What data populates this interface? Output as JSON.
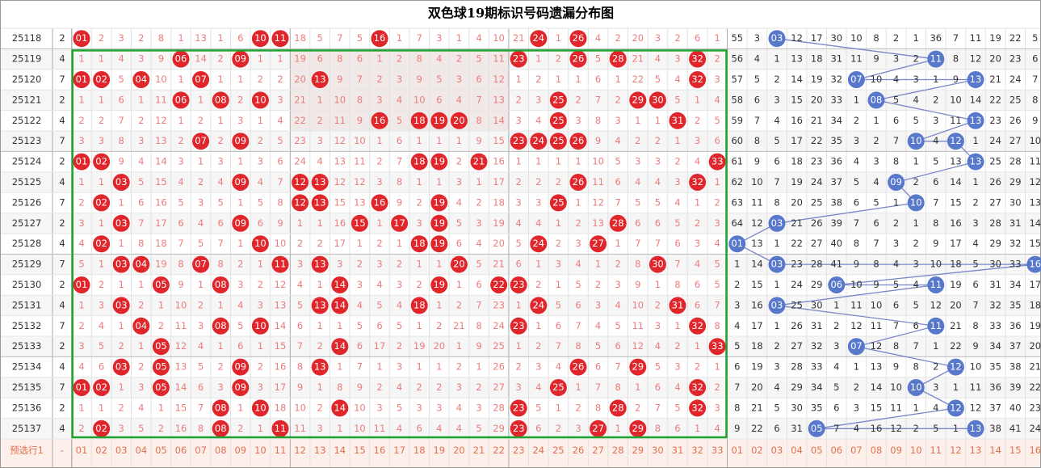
{
  "header": {
    "title": "双色球19期标识号码遗漏分布图"
  },
  "table": {
    "rows": [
      {
        "period": "25118",
        "mark": "2",
        "red": [
          "01",
          "2",
          "3",
          "2",
          "8",
          "1",
          "13",
          "1",
          "6",
          "10",
          "11",
          "18",
          "5",
          "7",
          "5",
          "16",
          "1",
          "7",
          "3",
          "1",
          "4",
          "10",
          "21",
          "24",
          "1",
          "26",
          "4",
          "2",
          "20",
          "3",
          "2",
          "6",
          "1"
        ],
        "blue": [
          "55",
          "3",
          "03",
          "12",
          "17",
          "30",
          "10",
          "8",
          "2",
          "1",
          "36",
          "7",
          "11",
          "19",
          "22",
          "5"
        ]
      },
      {
        "period": "25119",
        "mark": "4",
        "red": [
          "1",
          "1",
          "4",
          "3",
          "9",
          "06",
          "14",
          "2",
          "09",
          "1",
          "1",
          "19",
          "6",
          "8",
          "6",
          "1",
          "2",
          "8",
          "4",
          "2",
          "5",
          "11",
          "23",
          "1",
          "2",
          "26",
          "5",
          "28",
          "21",
          "4",
          "3",
          "32",
          "2"
        ],
        "blue": [
          "56",
          "4",
          "1",
          "13",
          "18",
          "31",
          "11",
          "9",
          "3",
          "2",
          "11",
          "8",
          "12",
          "20",
          "23",
          "6"
        ]
      },
      {
        "period": "25120",
        "mark": "7",
        "red": [
          "01",
          "02",
          "5",
          "04",
          "10",
          "1",
          "07",
          "1",
          "1",
          "2",
          "2",
          "20",
          "13",
          "9",
          "7",
          "2",
          "3",
          "9",
          "5",
          "3",
          "6",
          "12",
          "1",
          "2",
          "1",
          "1",
          "6",
          "1",
          "22",
          "5",
          "4",
          "32",
          "3"
        ],
        "blue": [
          "57",
          "5",
          "2",
          "14",
          "19",
          "32",
          "07",
          "10",
          "4",
          "3",
          "1",
          "9",
          "13",
          "21",
          "24",
          "7"
        ]
      },
      {
        "period": "25121",
        "mark": "2",
        "red": [
          "1",
          "1",
          "6",
          "1",
          "11",
          "06",
          "1",
          "08",
          "2",
          "10",
          "3",
          "21",
          "1",
          "10",
          "8",
          "3",
          "4",
          "10",
          "6",
          "4",
          "7",
          "13",
          "2",
          "3",
          "25",
          "2",
          "7",
          "2",
          "29",
          "30",
          "5",
          "1",
          "4"
        ],
        "blue": [
          "58",
          "6",
          "3",
          "15",
          "20",
          "33",
          "1",
          "08",
          "5",
          "4",
          "2",
          "10",
          "14",
          "22",
          "25",
          "8"
        ]
      },
      {
        "period": "25122",
        "mark": "4",
        "red": [
          "2",
          "2",
          "7",
          "2",
          "12",
          "1",
          "2",
          "1",
          "3",
          "1",
          "4",
          "22",
          "2",
          "11",
          "9",
          "16",
          "5",
          "18",
          "19",
          "20",
          "8",
          "14",
          "3",
          "4",
          "25",
          "3",
          "8",
          "3",
          "1",
          "1",
          "31",
          "2",
          "5"
        ],
        "blue": [
          "59",
          "7",
          "4",
          "16",
          "21",
          "34",
          "2",
          "1",
          "6",
          "5",
          "3",
          "11",
          "13",
          "23",
          "26",
          "9"
        ]
      },
      {
        "period": "25123",
        "mark": "7",
        "red": [
          "3",
          "3",
          "8",
          "3",
          "13",
          "2",
          "07",
          "2",
          "09",
          "2",
          "5",
          "23",
          "3",
          "12",
          "10",
          "1",
          "6",
          "1",
          "1",
          "1",
          "9",
          "15",
          "23",
          "24",
          "25",
          "26",
          "9",
          "4",
          "2",
          "2",
          "1",
          "3",
          "6"
        ],
        "blue": [
          "60",
          "8",
          "5",
          "17",
          "22",
          "35",
          "3",
          "2",
          "7",
          "10",
          "4",
          "12",
          "1",
          "24",
          "27",
          "10"
        ]
      },
      {
        "period": "25124",
        "mark": "2",
        "red": [
          "01",
          "02",
          "9",
          "4",
          "14",
          "3",
          "1",
          "3",
          "1",
          "3",
          "6",
          "24",
          "4",
          "13",
          "11",
          "2",
          "7",
          "18",
          "19",
          "2",
          "21",
          "16",
          "1",
          "1",
          "1",
          "1",
          "10",
          "5",
          "3",
          "3",
          "2",
          "4",
          "33"
        ],
        "blue": [
          "61",
          "9",
          "6",
          "18",
          "23",
          "36",
          "4",
          "3",
          "8",
          "1",
          "5",
          "13",
          "13",
          "25",
          "28",
          "11"
        ]
      },
      {
        "period": "25125",
        "mark": "4",
        "red": [
          "1",
          "1",
          "03",
          "5",
          "15",
          "4",
          "2",
          "4",
          "09",
          "4",
          "7",
          "12",
          "13",
          "12",
          "12",
          "3",
          "8",
          "1",
          "1",
          "3",
          "1",
          "17",
          "2",
          "2",
          "2",
          "26",
          "11",
          "6",
          "4",
          "4",
          "3",
          "32",
          "1"
        ],
        "blue": [
          "62",
          "10",
          "7",
          "19",
          "24",
          "37",
          "5",
          "4",
          "09",
          "2",
          "6",
          "14",
          "1",
          "26",
          "29",
          "12"
        ]
      },
      {
        "period": "25126",
        "mark": "7",
        "red": [
          "2",
          "02",
          "1",
          "6",
          "16",
          "5",
          "3",
          "5",
          "1",
          "5",
          "8",
          "12",
          "13",
          "15",
          "13",
          "16",
          "9",
          "2",
          "19",
          "4",
          "2",
          "18",
          "3",
          "3",
          "25",
          "1",
          "12",
          "7",
          "5",
          "5",
          "4",
          "1",
          "2"
        ],
        "blue": [
          "63",
          "11",
          "8",
          "20",
          "25",
          "38",
          "6",
          "5",
          "1",
          "10",
          "7",
          "15",
          "2",
          "27",
          "30",
          "13"
        ]
      },
      {
        "period": "25127",
        "mark": "2",
        "red": [
          "3",
          "1",
          "03",
          "7",
          "17",
          "6",
          "4",
          "6",
          "09",
          "6",
          "9",
          "1",
          "1",
          "16",
          "15",
          "1",
          "17",
          "3",
          "19",
          "5",
          "3",
          "19",
          "4",
          "4",
          "1",
          "2",
          "13",
          "28",
          "6",
          "6",
          "5",
          "2",
          "3"
        ],
        "blue": [
          "64",
          "12",
          "03",
          "21",
          "26",
          "39",
          "7",
          "6",
          "2",
          "1",
          "8",
          "16",
          "3",
          "28",
          "31",
          "14"
        ]
      },
      {
        "period": "25128",
        "mark": "4",
        "red": [
          "4",
          "02",
          "1",
          "8",
          "18",
          "7",
          "5",
          "7",
          "1",
          "10",
          "10",
          "2",
          "2",
          "17",
          "1",
          "2",
          "1",
          "18",
          "19",
          "6",
          "4",
          "20",
          "5",
          "24",
          "2",
          "3",
          "27",
          "1",
          "7",
          "7",
          "6",
          "3",
          "4"
        ],
        "blue": [
          "01",
          "13",
          "1",
          "22",
          "27",
          "40",
          "8",
          "7",
          "3",
          "2",
          "9",
          "17",
          "4",
          "29",
          "32",
          "15"
        ]
      },
      {
        "period": "25129",
        "mark": "7",
        "red": [
          "5",
          "1",
          "03",
          "04",
          "19",
          "8",
          "07",
          "8",
          "2",
          "1",
          "11",
          "3",
          "13",
          "3",
          "2",
          "3",
          "2",
          "1",
          "1",
          "20",
          "5",
          "21",
          "6",
          "1",
          "3",
          "4",
          "1",
          "2",
          "8",
          "30",
          "7",
          "4",
          "5"
        ],
        "blue": [
          "1",
          "14",
          "03",
          "23",
          "28",
          "41",
          "9",
          "8",
          "4",
          "3",
          "10",
          "18",
          "5",
          "30",
          "33",
          "16"
        ]
      },
      {
        "period": "25130",
        "mark": "2",
        "red": [
          "01",
          "2",
          "1",
          "1",
          "05",
          "9",
          "1",
          "08",
          "3",
          "2",
          "12",
          "4",
          "1",
          "14",
          "3",
          "4",
          "3",
          "2",
          "19",
          "1",
          "6",
          "22",
          "23",
          "2",
          "1",
          "5",
          "2",
          "3",
          "9",
          "1",
          "8",
          "6",
          "5"
        ],
        "blue": [
          "2",
          "15",
          "1",
          "24",
          "29",
          "06",
          "10",
          "9",
          "5",
          "4",
          "11",
          "19",
          "6",
          "31",
          "34",
          "17"
        ]
      },
      {
        "period": "25131",
        "mark": "4",
        "red": [
          "1",
          "3",
          "03",
          "2",
          "1",
          "10",
          "2",
          "1",
          "4",
          "3",
          "13",
          "5",
          "13",
          "14",
          "4",
          "5",
          "4",
          "18",
          "1",
          "2",
          "7",
          "23",
          "1",
          "24",
          "5",
          "6",
          "3",
          "4",
          "10",
          "2",
          "31",
          "6",
          "7"
        ],
        "blue": [
          "3",
          "16",
          "03",
          "25",
          "30",
          "1",
          "11",
          "10",
          "6",
          "5",
          "12",
          "20",
          "7",
          "32",
          "35",
          "18"
        ]
      },
      {
        "period": "25132",
        "mark": "7",
        "red": [
          "2",
          "4",
          "1",
          "04",
          "2",
          "11",
          "3",
          "08",
          "5",
          "10",
          "14",
          "6",
          "1",
          "1",
          "5",
          "6",
          "5",
          "1",
          "2",
          "21",
          "8",
          "24",
          "23",
          "1",
          "6",
          "7",
          "4",
          "5",
          "11",
          "3",
          "1",
          "32",
          "8"
        ],
        "blue": [
          "4",
          "17",
          "1",
          "26",
          "31",
          "2",
          "12",
          "11",
          "7",
          "6",
          "11",
          "21",
          "8",
          "33",
          "36",
          "19"
        ]
      },
      {
        "period": "25133",
        "mark": "2",
        "red": [
          "3",
          "5",
          "2",
          "1",
          "05",
          "12",
          "4",
          "1",
          "6",
          "1",
          "15",
          "7",
          "2",
          "14",
          "6",
          "17",
          "2",
          "19",
          "20",
          "1",
          "9",
          "25",
          "1",
          "2",
          "7",
          "8",
          "5",
          "6",
          "12",
          "4",
          "2",
          "1",
          "33"
        ],
        "blue": [
          "5",
          "18",
          "2",
          "27",
          "32",
          "3",
          "07",
          "12",
          "8",
          "7",
          "1",
          "22",
          "9",
          "34",
          "37",
          "20"
        ]
      },
      {
        "period": "25134",
        "mark": "4",
        "red": [
          "4",
          "6",
          "03",
          "2",
          "05",
          "13",
          "5",
          "2",
          "09",
          "2",
          "16",
          "8",
          "13",
          "1",
          "7",
          "1",
          "3",
          "1",
          "1",
          "2",
          "1",
          "26",
          "2",
          "3",
          "4",
          "26",
          "6",
          "7",
          "29",
          "5",
          "3",
          "2",
          "1"
        ],
        "blue": [
          "6",
          "19",
          "3",
          "28",
          "33",
          "4",
          "1",
          "13",
          "9",
          "8",
          "2",
          "12",
          "10",
          "35",
          "38",
          "21"
        ]
      },
      {
        "period": "25135",
        "mark": "7",
        "red": [
          "01",
          "02",
          "1",
          "3",
          "05",
          "14",
          "6",
          "3",
          "09",
          "3",
          "17",
          "9",
          "1",
          "8",
          "9",
          "2",
          "4",
          "2",
          "2",
          "3",
          "2",
          "27",
          "3",
          "4",
          "25",
          "1",
          "7",
          "8",
          "1",
          "6",
          "4",
          "32",
          "2"
        ],
        "blue": [
          "7",
          "20",
          "4",
          "29",
          "34",
          "5",
          "2",
          "14",
          "10",
          "10",
          "3",
          "1",
          "11",
          "36",
          "39",
          "22"
        ]
      },
      {
        "period": "25136",
        "mark": "2",
        "red": [
          "1",
          "1",
          "2",
          "4",
          "1",
          "15",
          "7",
          "08",
          "1",
          "10",
          "18",
          "10",
          "2",
          "14",
          "10",
          "3",
          "5",
          "3",
          "3",
          "4",
          "3",
          "28",
          "23",
          "5",
          "1",
          "2",
          "8",
          "28",
          "2",
          "7",
          "5",
          "32",
          "3"
        ],
        "blue": [
          "8",
          "21",
          "5",
          "30",
          "35",
          "6",
          "3",
          "15",
          "11",
          "1",
          "4",
          "12",
          "12",
          "37",
          "40",
          "23"
        ]
      },
      {
        "period": "25137",
        "mark": "4",
        "red": [
          "2",
          "02",
          "3",
          "5",
          "2",
          "16",
          "8",
          "08",
          "2",
          "1",
          "11",
          "11",
          "3",
          "1",
          "10",
          "11",
          "4",
          "6",
          "4",
          "4",
          "5",
          "29",
          "23",
          "6",
          "2",
          "3",
          "27",
          "1",
          "29",
          "8",
          "6",
          "1",
          "4"
        ],
        "blue": [
          "9",
          "22",
          "6",
          "31",
          "05",
          "7",
          "4",
          "16",
          "12",
          "2",
          "5",
          "1",
          "13",
          "38",
          "41",
          "24"
        ]
      }
    ],
    "footer": {
      "label": "预选行1",
      "mark": "-",
      "red": [
        "01",
        "02",
        "03",
        "04",
        "05",
        "06",
        "07",
        "08",
        "09",
        "10",
        "11",
        "12",
        "13",
        "14",
        "15",
        "16",
        "17",
        "18",
        "19",
        "20",
        "21",
        "22",
        "23",
        "24",
        "25",
        "26",
        "27",
        "28",
        "29",
        "30",
        "31",
        "32",
        "33"
      ],
      "blue": [
        "01",
        "02",
        "03",
        "04",
        "05",
        "06",
        "07",
        "08",
        "09",
        "10",
        "11",
        "12",
        "13",
        "14",
        "15",
        "16"
      ]
    }
  }
}
